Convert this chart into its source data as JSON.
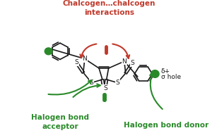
{
  "bg_color": "#ffffff",
  "green_color": "#2a8a2a",
  "red_color": "#c0392b",
  "black_color": "#1a1a1a",
  "text_halogen_acceptor": "Halogen bond\nacceptor",
  "text_halogen_donor": "Halogen bond donor",
  "text_chalcogen": "Chalcogen…chalcogen\ninteractions",
  "text_delta": "δ+",
  "text_sigma": "σ hole",
  "figsize": [
    3.07,
    1.89
  ],
  "dpi": 100
}
